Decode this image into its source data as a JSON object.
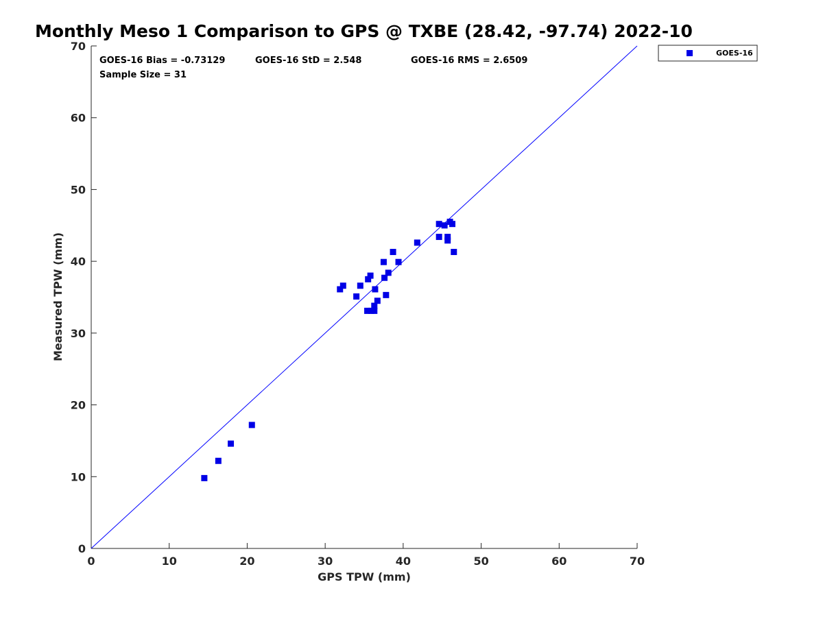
{
  "chart_data": {
    "type": "scatter",
    "title": "Monthly Meso 1 Comparison to GPS @ TXBE (28.42, -97.74) 2022-10",
    "xlabel": "GPS TPW (mm)",
    "ylabel": "Measured TPW (mm)",
    "xlim": [
      0,
      70
    ],
    "ylim": [
      0,
      70
    ],
    "xticks": [
      0,
      10,
      20,
      30,
      40,
      50,
      60,
      70
    ],
    "yticks": [
      0,
      10,
      20,
      30,
      40,
      50,
      60,
      70
    ],
    "grid": false,
    "legend_position": "outside-top-right",
    "reference_line": {
      "from": [
        0,
        0
      ],
      "to": [
        70,
        70
      ],
      "color": "#0000ff"
    },
    "stats": {
      "bias": "GOES-16 Bias = -0.73129",
      "std": "GOES-16 StD = 2.548",
      "rms": "GOES-16 RMS = 2.6509",
      "sample": "Sample Size = 31"
    },
    "series": [
      {
        "name": "GOES-16",
        "color": "#0000e6",
        "marker": "square",
        "points": [
          [
            14.5,
            9.8
          ],
          [
            16.3,
            12.2
          ],
          [
            17.9,
            14.6
          ],
          [
            20.6,
            17.2
          ],
          [
            31.9,
            36.1
          ],
          [
            32.3,
            36.6
          ],
          [
            34.0,
            35.1
          ],
          [
            34.5,
            36.6
          ],
          [
            35.4,
            33.1
          ],
          [
            35.5,
            37.5
          ],
          [
            35.8,
            38.0
          ],
          [
            35.9,
            33.1
          ],
          [
            36.3,
            33.1
          ],
          [
            36.3,
            33.8
          ],
          [
            36.4,
            36.1
          ],
          [
            36.7,
            34.5
          ],
          [
            37.5,
            39.9
          ],
          [
            37.6,
            37.7
          ],
          [
            37.8,
            35.3
          ],
          [
            38.1,
            38.4
          ],
          [
            38.7,
            41.3
          ],
          [
            39.4,
            39.9
          ],
          [
            41.8,
            42.6
          ],
          [
            44.6,
            45.2
          ],
          [
            44.6,
            43.4
          ],
          [
            45.3,
            45.0
          ],
          [
            45.7,
            43.4
          ],
          [
            45.7,
            42.9
          ],
          [
            46.0,
            45.5
          ],
          [
            46.3,
            45.2
          ],
          [
            46.5,
            41.3
          ]
        ]
      }
    ]
  }
}
